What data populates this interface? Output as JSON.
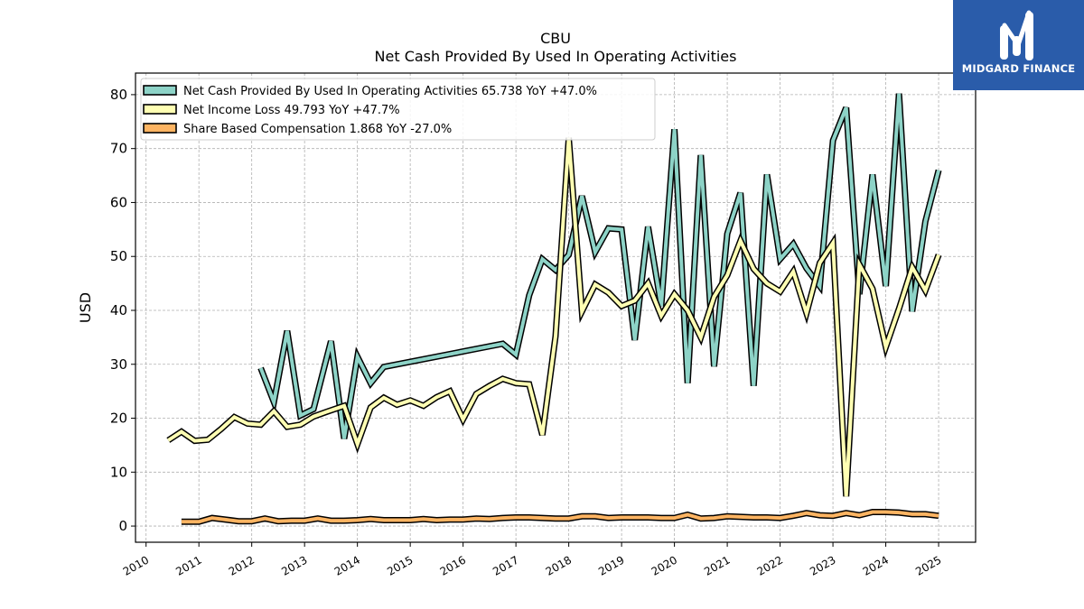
{
  "chart_data": {
    "type": "line",
    "title": "CBU",
    "subtitle": "Net Cash Provided By Used In Operating Activities",
    "ylabel": "USD",
    "xlabel": "",
    "xlim": [
      2009.8,
      2025.7
    ],
    "ylim": [
      -3,
      84
    ],
    "yticks": [
      0,
      10,
      20,
      30,
      40,
      50,
      60,
      70,
      80
    ],
    "xticks": [
      "2010",
      "2011",
      "2012",
      "2013",
      "2014",
      "2015",
      "2016",
      "2017",
      "2018",
      "2019",
      "2020",
      "2021",
      "2022",
      "2023",
      "2024",
      "2025"
    ],
    "grid": true,
    "legend_position": "top-left",
    "series": [
      {
        "name": "Net Cash Provided By Used In Operating Activities",
        "legend": "Net Cash Provided By Used In Operating Activities  65.738 YoY +47.0%",
        "color": "#8dd3c7",
        "points": [
          [
            2012.17,
            29.3
          ],
          [
            2012.42,
            23.0
          ],
          [
            2012.67,
            36.2
          ],
          [
            2012.92,
            20.5
          ],
          [
            2013.17,
            21.7
          ],
          [
            2013.5,
            34.3
          ],
          [
            2013.75,
            16.2
          ],
          [
            2014.0,
            31.4
          ],
          [
            2014.25,
            26.5
          ],
          [
            2014.5,
            29.5
          ],
          [
            2016.75,
            33.8
          ],
          [
            2017.0,
            31.8
          ],
          [
            2017.25,
            42.8
          ],
          [
            2017.5,
            49.5
          ],
          [
            2017.75,
            47.5
          ],
          [
            2018.0,
            50.3
          ],
          [
            2018.25,
            61.2
          ],
          [
            2018.5,
            50.8
          ],
          [
            2018.75,
            55.2
          ],
          [
            2019.0,
            55.0
          ],
          [
            2019.25,
            34.5
          ],
          [
            2019.5,
            55.5
          ],
          [
            2019.75,
            40.8
          ],
          [
            2020.0,
            73.6
          ],
          [
            2020.25,
            26.5
          ],
          [
            2020.5,
            68.8
          ],
          [
            2020.75,
            29.6
          ],
          [
            2021.0,
            54.2
          ],
          [
            2021.25,
            61.8
          ],
          [
            2021.5,
            26.0
          ],
          [
            2021.75,
            65.2
          ],
          [
            2022.0,
            49.5
          ],
          [
            2022.25,
            52.3
          ],
          [
            2022.5,
            47.8
          ],
          [
            2022.75,
            44.5
          ],
          [
            2023.0,
            71.5
          ],
          [
            2023.25,
            77.6
          ],
          [
            2023.5,
            43.0
          ],
          [
            2023.75,
            65.2
          ],
          [
            2024.0,
            44.5
          ],
          [
            2024.25,
            80.2
          ],
          [
            2024.5,
            39.8
          ],
          [
            2024.75,
            56.5
          ],
          [
            2025.0,
            66.0
          ]
        ]
      },
      {
        "name": "Net Income Loss",
        "legend": "Net Income Loss  49.793 YoY +47.7%",
        "color": "#ffffb3",
        "points": [
          [
            2010.42,
            15.9
          ],
          [
            2010.67,
            17.5
          ],
          [
            2010.92,
            15.8
          ],
          [
            2011.17,
            16.0
          ],
          [
            2011.42,
            18.0
          ],
          [
            2011.67,
            20.2
          ],
          [
            2011.92,
            19.0
          ],
          [
            2012.17,
            18.8
          ],
          [
            2012.42,
            21.3
          ],
          [
            2012.67,
            18.4
          ],
          [
            2012.92,
            18.8
          ],
          [
            2013.17,
            20.3
          ],
          [
            2013.42,
            21.2
          ],
          [
            2013.75,
            22.3
          ],
          [
            2014.0,
            15.2
          ],
          [
            2014.25,
            22.0
          ],
          [
            2014.5,
            23.8
          ],
          [
            2014.75,
            22.5
          ],
          [
            2015.0,
            23.3
          ],
          [
            2015.25,
            22.3
          ],
          [
            2015.5,
            23.9
          ],
          [
            2015.75,
            25.0
          ],
          [
            2016.0,
            19.8
          ],
          [
            2016.25,
            24.5
          ],
          [
            2016.5,
            26.0
          ],
          [
            2016.75,
            27.3
          ],
          [
            2017.0,
            26.5
          ],
          [
            2017.25,
            26.3
          ],
          [
            2017.5,
            16.9
          ],
          [
            2017.75,
            35.2
          ],
          [
            2018.0,
            72.0
          ],
          [
            2018.25,
            39.8
          ],
          [
            2018.5,
            44.8
          ],
          [
            2018.75,
            43.3
          ],
          [
            2019.0,
            40.8
          ],
          [
            2019.25,
            41.8
          ],
          [
            2019.5,
            45.0
          ],
          [
            2019.75,
            39.0
          ],
          [
            2020.0,
            43.0
          ],
          [
            2020.25,
            40.0
          ],
          [
            2020.5,
            35.0
          ],
          [
            2020.75,
            42.5
          ],
          [
            2021.0,
            46.5
          ],
          [
            2021.25,
            52.9
          ],
          [
            2021.5,
            47.7
          ],
          [
            2021.75,
            45.0
          ],
          [
            2022.0,
            43.5
          ],
          [
            2022.25,
            47.2
          ],
          [
            2022.5,
            39.5
          ],
          [
            2022.75,
            48.8
          ],
          [
            2023.0,
            52.5
          ],
          [
            2023.25,
            5.5
          ],
          [
            2023.5,
            48.5
          ],
          [
            2023.75,
            44.0
          ],
          [
            2024.0,
            33.2
          ],
          [
            2024.25,
            40.3
          ],
          [
            2024.5,
            48.0
          ],
          [
            2024.75,
            43.7
          ],
          [
            2025.0,
            50.3
          ]
        ]
      },
      {
        "name": "Share Based Compensation",
        "legend": "Share Based Compensation  1.868 YoY -27.0%",
        "color": "#fdb462",
        "points": [
          [
            2010.67,
            0.8
          ],
          [
            2011.0,
            0.8
          ],
          [
            2011.25,
            1.5
          ],
          [
            2011.5,
            1.2
          ],
          [
            2011.75,
            0.9
          ],
          [
            2012.0,
            0.9
          ],
          [
            2012.25,
            1.4
          ],
          [
            2012.5,
            0.9
          ],
          [
            2012.75,
            1.0
          ],
          [
            2013.0,
            1.0
          ],
          [
            2013.25,
            1.4
          ],
          [
            2013.5,
            1.0
          ],
          [
            2013.75,
            1.0
          ],
          [
            2014.0,
            1.1
          ],
          [
            2014.25,
            1.3
          ],
          [
            2014.5,
            1.1
          ],
          [
            2014.75,
            1.1
          ],
          [
            2015.0,
            1.1
          ],
          [
            2015.25,
            1.3
          ],
          [
            2015.5,
            1.1
          ],
          [
            2015.75,
            1.2
          ],
          [
            2016.0,
            1.2
          ],
          [
            2016.25,
            1.4
          ],
          [
            2016.5,
            1.3
          ],
          [
            2016.75,
            1.5
          ],
          [
            2017.0,
            1.6
          ],
          [
            2017.25,
            1.6
          ],
          [
            2017.5,
            1.5
          ],
          [
            2017.75,
            1.4
          ],
          [
            2018.0,
            1.4
          ],
          [
            2018.25,
            1.8
          ],
          [
            2018.5,
            1.8
          ],
          [
            2018.75,
            1.5
          ],
          [
            2019.0,
            1.6
          ],
          [
            2019.25,
            1.6
          ],
          [
            2019.5,
            1.6
          ],
          [
            2019.75,
            1.5
          ],
          [
            2020.0,
            1.5
          ],
          [
            2020.25,
            2.1
          ],
          [
            2020.5,
            1.4
          ],
          [
            2020.75,
            1.5
          ],
          [
            2021.0,
            1.8
          ],
          [
            2021.25,
            1.7
          ],
          [
            2021.5,
            1.6
          ],
          [
            2021.75,
            1.6
          ],
          [
            2022.0,
            1.5
          ],
          [
            2022.25,
            1.9
          ],
          [
            2022.5,
            2.4
          ],
          [
            2022.75,
            2.0
          ],
          [
            2023.0,
            1.9
          ],
          [
            2023.25,
            2.4
          ],
          [
            2023.5,
            2.0
          ],
          [
            2023.75,
            2.6
          ],
          [
            2024.0,
            2.6
          ],
          [
            2024.25,
            2.5
          ],
          [
            2024.5,
            2.2
          ],
          [
            2024.75,
            2.2
          ],
          [
            2025.0,
            1.9
          ]
        ]
      }
    ]
  },
  "logo": {
    "text": "MIDGARD FINANCE",
    "bg_color": "#2a5caa"
  }
}
